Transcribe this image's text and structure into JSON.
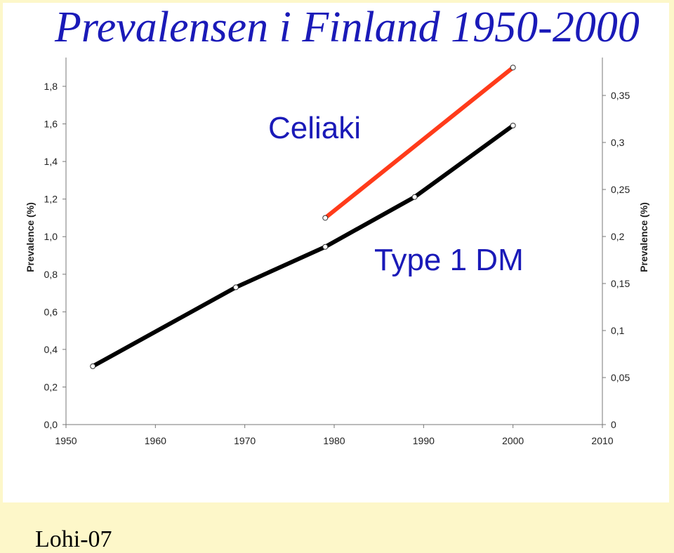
{
  "title": "Prevalensen i Finland 1950-2000",
  "footer": "Lohi-07",
  "colors": {
    "title": "#1a1ab8",
    "celiaki": "#ff3b1a",
    "type1dm": "#000000",
    "background": "#fdf7c9"
  },
  "chart_data": {
    "type": "line",
    "x_ticks": [
      "1950",
      "1960",
      "1970",
      "1980",
      "1990",
      "2000",
      "2010"
    ],
    "xlim": [
      1950,
      2010
    ],
    "y_left_ticks": [
      "0,0",
      "0,2",
      "0,4",
      "0,6",
      "0,8",
      "1,0",
      "1,2",
      "1,4",
      "1,6",
      "1,8"
    ],
    "ylim_left": [
      0,
      1.8
    ],
    "ylabel_left": "Prevalence (%)",
    "y_right_ticks": [
      "0",
      "0,05",
      "0,1",
      "0,15",
      "0,2",
      "0,25",
      "0,3",
      "0,35"
    ],
    "ylim_right": [
      0,
      0.35
    ],
    "ylabel_right": "Prevalence (%)",
    "series": [
      {
        "name": "Celiaki",
        "axis": "left",
        "color": "#ff3b1a",
        "x": [
          1979,
          2000
        ],
        "y": [
          1.1,
          1.9
        ]
      },
      {
        "name": "Type 1 DM",
        "axis": "right",
        "color": "#000000",
        "x": [
          1953,
          1969,
          1979,
          1989,
          2000
        ],
        "y": [
          0.062,
          0.146,
          0.189,
          0.242,
          0.318
        ]
      }
    ]
  }
}
